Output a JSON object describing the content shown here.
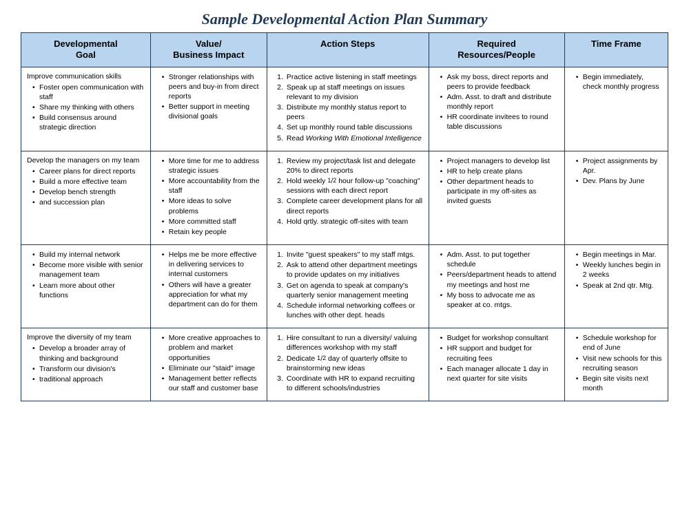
{
  "title_text": "Sample Developmental Action Plan Summary",
  "title_color": "#1f3a56",
  "header_bg": "#b8d4ef",
  "border_color": "#1f3a56",
  "col_widths": [
    "20%",
    "18%",
    "25%",
    "21%",
    "16%"
  ],
  "columns": [
    "Developmental\nGoal",
    "Value/\nBusiness Impact",
    "Action Steps",
    "Required\nResources/People",
    "Time Frame"
  ],
  "rows": [
    {
      "goal": {
        "lead": "Improve communication skills",
        "bullets": [
          "Foster open communication with staff",
          "Share my thinking with others",
          "Build consensus around strategic direction"
        ]
      },
      "value": {
        "bullets": [
          "Stronger relationships with peers and  buy-in from direct reports",
          "Better support in meeting divisional goals"
        ]
      },
      "steps": {
        "numbered": [
          "Practice active listening in staff meetings",
          "Speak up at staff meetings on issues relevant to my division",
          "Distribute my monthly  status report to peers",
          "Set up monthly round table discussions",
          {
            "text": "Read ",
            "em": "Working With Emotional Intelligence"
          }
        ]
      },
      "resources": {
        "bullets": [
          "Ask my boss, direct reports and peers to provide feedback",
          "Adm. Asst. to draft and distribute monthly report",
          "HR coordinate invitees to round table discussions"
        ]
      },
      "timeframe": {
        "bullets": [
          "Begin immediately, check monthly progress"
        ]
      }
    },
    {
      "goal": {
        "lead": "Develop the managers on my team",
        "bullets": [
          "Career plans for direct reports",
          "Build a more effective team",
          "Develop bench strength",
          "and succession plan"
        ]
      },
      "value": {
        "bullets": [
          "More time for me to address strategic issues",
          "More accountability from the staff",
          "More ideas to solve problems",
          "More committed staff",
          "Retain key people"
        ]
      },
      "steps": {
        "numbered": [
          "Review my project/task list and delegate 20% to direct reports",
          {
            "text": "Hold weekly ",
            "frac": "1/2",
            "tail": " hour follow-up \"coaching\" sessions with each direct report"
          },
          "Complete career development plans for all direct reports",
          "Hold qrtly. strategic off-sites with team"
        ]
      },
      "resources": {
        "bullets": [
          "Project managers to develop list",
          "HR to help create plans",
          "Other department heads to participate in my off-sites as invited guests"
        ]
      },
      "timeframe": {
        "bullets": [
          "Project assignments by Apr.",
          "Dev. Plans by June"
        ]
      }
    },
    {
      "goal": {
        "bullets": [
          "Build my internal network",
          "Become more visible with senior management team",
          "Learn more about other functions"
        ]
      },
      "value": {
        "bullets": [
          "Helps me be more effective in delivering services to internal customers",
          "Others will have a greater appreciation for what my department can do for them"
        ]
      },
      "steps": {
        "numbered": [
          "Invite \"guest speakers\" to my staff mtgs.",
          "Ask to attend other department meetings to provide updates on my initiatives",
          "Get on agenda to speak at company's quarterly senior management meeting",
          "Schedule informal networking coffees or lunches with other dept. heads"
        ]
      },
      "resources": {
        "bullets": [
          "Adm. Asst. to put together schedule",
          "Peers/department heads to attend my meetings and host me",
          "My boss to advocate me as speaker at co. mtgs."
        ]
      },
      "timeframe": {
        "bullets": [
          "Begin meetings in Mar.",
          "Weekly lunches begin in 2 weeks",
          "Speak at 2nd qtr. Mtg."
        ]
      }
    },
    {
      "goal": {
        "lead": "Improve the diversity of my team",
        "bullets": [
          "Develop a broader array of thinking and background",
          "Transform our division's",
          "traditional approach"
        ]
      },
      "value": {
        "bullets": [
          "More creative approaches to problem and market opportunities",
          "Eliminate our \"staid\" image",
          "Management better reflects our staff and customer base"
        ]
      },
      "steps": {
        "numbered": [
          "Hire consultant to run a diversity/ valuing differences workshop with my staff",
          {
            "text": "Dedicate ",
            "frac": "1/2",
            "tail": " day of quarterly offsite to brainstorming new ideas"
          },
          "Coordinate with HR to expand recruiting to different schools/industries"
        ]
      },
      "resources": {
        "bullets": [
          "Budget for workshop consultant",
          "HR support and budget for recruiting fees",
          "Each manager allocate 1 day in next quarter for site visits"
        ]
      },
      "timeframe": {
        "bullets": [
          "Schedule workshop for end of June",
          "Visit new schools for this recruiting season",
          "Begin site visits next month"
        ]
      }
    }
  ]
}
